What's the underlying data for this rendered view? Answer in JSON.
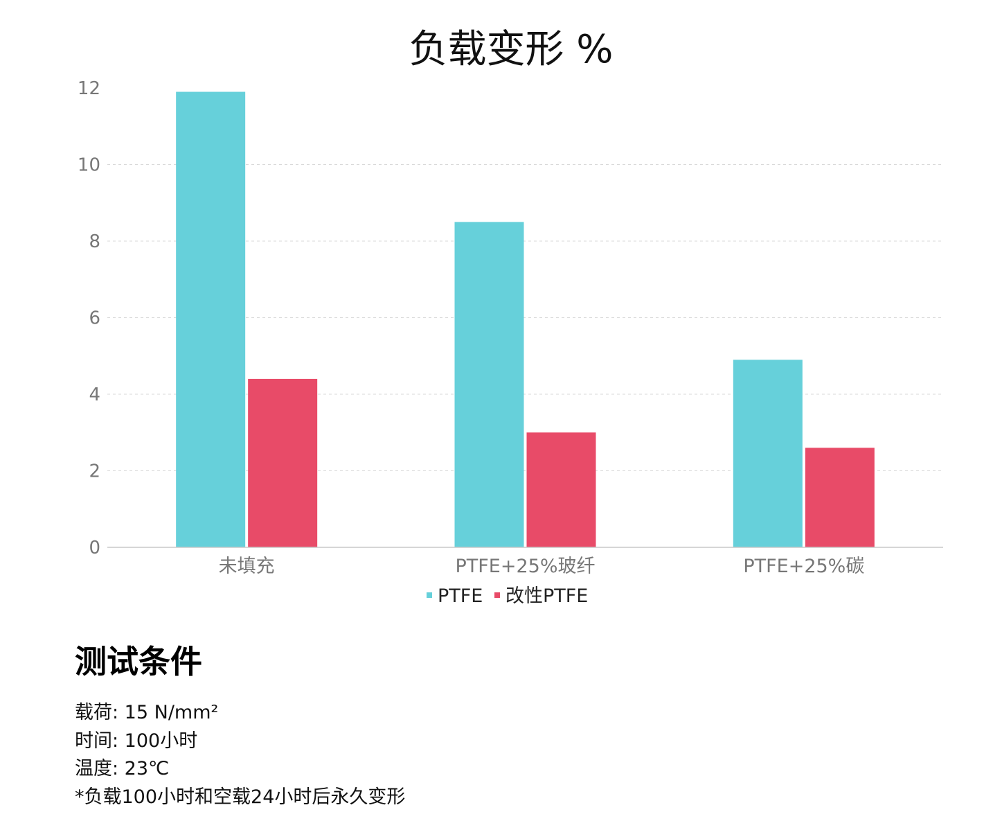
{
  "chart_data": {
    "type": "bar",
    "title": "负载变形 %",
    "categories": [
      "未填充",
      "PTFE+25%玻纤",
      "PTFE+25%碳"
    ],
    "series": [
      {
        "name": "PTFE",
        "values": [
          11.9,
          8.5,
          4.9
        ],
        "color": "#66d0da"
      },
      {
        "name": "改性PTFE",
        "values": [
          4.4,
          3.0,
          2.6
        ],
        "color": "#e84b68"
      }
    ],
    "ylim": [
      0,
      12
    ],
    "yticks": [
      0,
      2,
      4,
      6,
      8,
      10,
      12
    ],
    "grid": true,
    "legend_position": "bottom-center",
    "xlabel": "",
    "ylabel": ""
  },
  "conditions": {
    "heading": "测试条件",
    "lines": [
      "载荷: 15 N/mm²",
      "时间: 100小时",
      "温度: 23℃",
      "*负载100小时和空载24小时后永久变形"
    ]
  }
}
